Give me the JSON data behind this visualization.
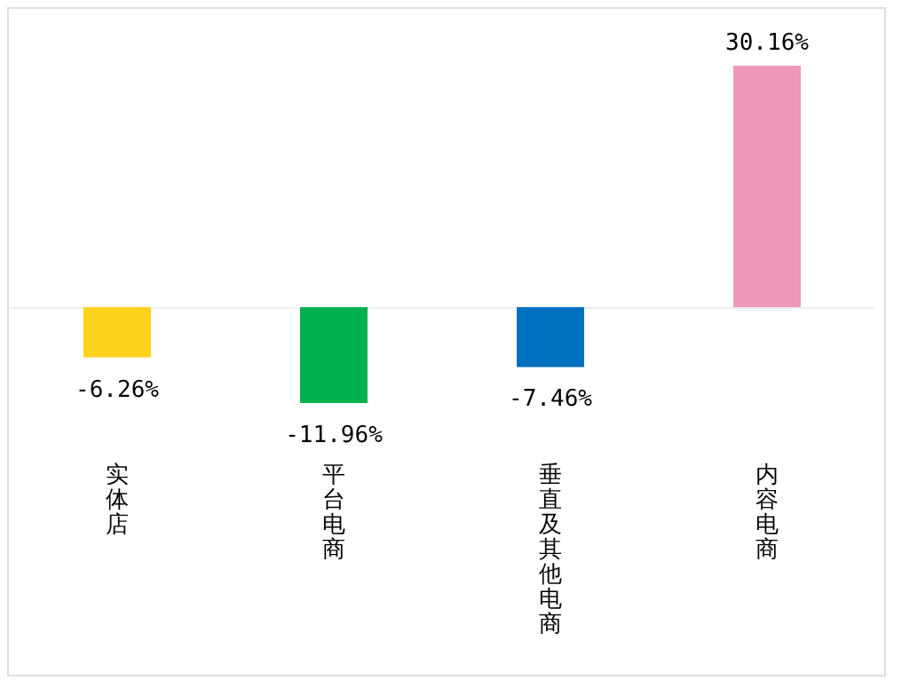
{
  "chart_data": {
    "type": "bar",
    "categories": [
      "实体店",
      "平台电商",
      "垂直及其他电商",
      "内容电商"
    ],
    "values": [
      -6.26,
      -11.96,
      -7.46,
      30.16
    ],
    "colors": [
      "#ffd21c",
      "#00b050",
      "#0070c0",
      "#ee98bb"
    ],
    "value_labels": [
      "-6.26%",
      "-11.96%",
      "-7.46%",
      "30.16%"
    ]
  }
}
